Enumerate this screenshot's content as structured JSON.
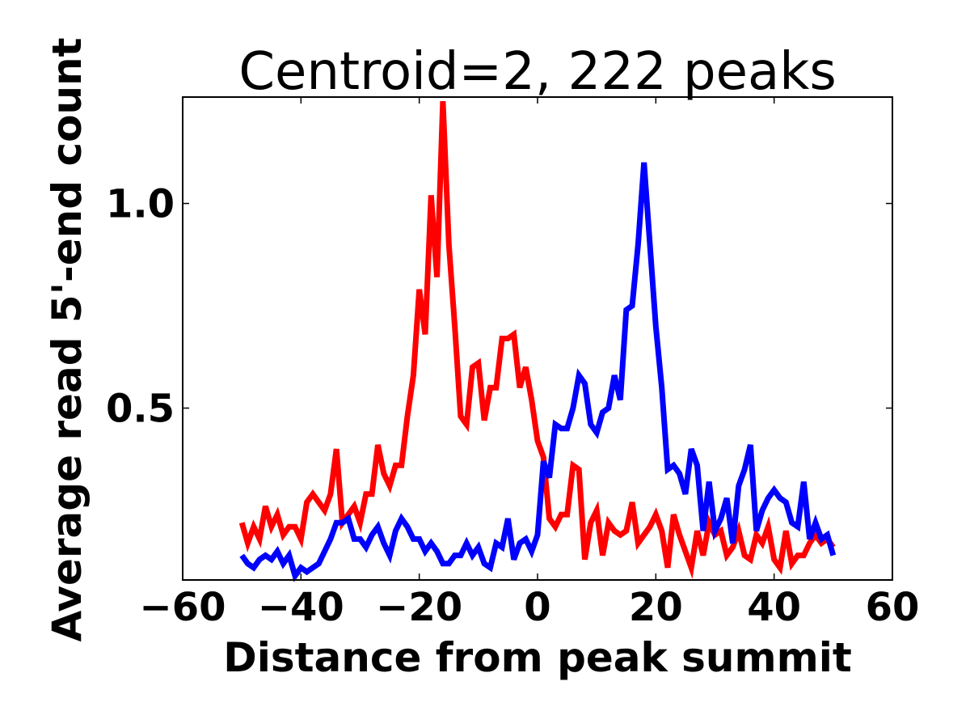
{
  "chart_data": {
    "type": "line",
    "title": "Centroid=2, 222 peaks",
    "xlabel": "Distance from peak summit",
    "ylabel": "Average read 5'-end count",
    "xlim": [
      -60,
      60
    ],
    "ylim": [
      0.08,
      1.26
    ],
    "xticks": [
      -60,
      -40,
      -20,
      0,
      20,
      40,
      60
    ],
    "xtick_labels": [
      "−60",
      "−40",
      "−20",
      "0",
      "20",
      "40",
      "60"
    ],
    "yticks": [
      0.5,
      1.0
    ],
    "ytick_labels": [
      "0.5",
      "1.0"
    ],
    "grid": false,
    "legend": "none",
    "x": [
      -50,
      -49,
      -48,
      -47,
      -46,
      -45,
      -44,
      -43,
      -42,
      -41,
      -40,
      -39,
      -38,
      -37,
      -36,
      -35,
      -34,
      -33,
      -32,
      -31,
      -30,
      -29,
      -28,
      -27,
      -26,
      -25,
      -24,
      -23,
      -22,
      -21,
      -20,
      -19,
      -18,
      -17,
      -16,
      -15,
      -14,
      -13,
      -12,
      -11,
      -10,
      -9,
      -8,
      -7,
      -6,
      -5,
      -4,
      -3,
      -2,
      -1,
      0,
      1,
      2,
      3,
      4,
      5,
      6,
      7,
      8,
      9,
      10,
      11,
      12,
      13,
      14,
      15,
      16,
      17,
      18,
      19,
      20,
      21,
      22,
      23,
      24,
      25,
      26,
      27,
      28,
      29,
      30,
      31,
      32,
      33,
      34,
      35,
      36,
      37,
      38,
      39,
      40,
      41,
      42,
      43,
      44,
      45,
      46,
      47,
      48,
      49,
      50
    ],
    "series": [
      {
        "color": "#ff0000",
        "values": [
          0.22,
          0.17,
          0.21,
          0.18,
          0.26,
          0.21,
          0.24,
          0.19,
          0.21,
          0.21,
          0.18,
          0.27,
          0.29,
          0.27,
          0.25,
          0.29,
          0.4,
          0.22,
          0.24,
          0.26,
          0.22,
          0.29,
          0.29,
          0.41,
          0.34,
          0.31,
          0.36,
          0.36,
          0.48,
          0.58,
          0.79,
          0.68,
          1.02,
          0.82,
          1.25,
          0.9,
          0.7,
          0.48,
          0.46,
          0.6,
          0.61,
          0.47,
          0.55,
          0.55,
          0.67,
          0.67,
          0.68,
          0.55,
          0.6,
          0.52,
          0.42,
          0.38,
          0.23,
          0.21,
          0.24,
          0.24,
          0.36,
          0.35,
          0.13,
          0.22,
          0.25,
          0.14,
          0.22,
          0.2,
          0.19,
          0.2,
          0.27,
          0.17,
          0.19,
          0.21,
          0.24,
          0.2,
          0.11,
          0.24,
          0.19,
          0.15,
          0.11,
          0.2,
          0.14,
          0.22,
          0.19,
          0.2,
          0.14,
          0.16,
          0.2,
          0.14,
          0.13,
          0.19,
          0.17,
          0.21,
          0.13,
          0.11,
          0.2,
          0.12,
          0.14,
          0.14,
          0.17,
          0.19,
          0.17,
          0.18,
          0.16
        ]
      },
      {
        "color": "#0000ff",
        "values": [
          0.14,
          0.12,
          0.11,
          0.13,
          0.14,
          0.13,
          0.15,
          0.12,
          0.14,
          0.09,
          0.11,
          0.1,
          0.11,
          0.12,
          0.15,
          0.18,
          0.22,
          0.22,
          0.23,
          0.18,
          0.18,
          0.16,
          0.19,
          0.21,
          0.17,
          0.14,
          0.2,
          0.23,
          0.21,
          0.18,
          0.18,
          0.15,
          0.17,
          0.15,
          0.12,
          0.12,
          0.14,
          0.14,
          0.17,
          0.14,
          0.16,
          0.12,
          0.11,
          0.17,
          0.16,
          0.23,
          0.13,
          0.17,
          0.18,
          0.15,
          0.19,
          0.37,
          0.33,
          0.46,
          0.45,
          0.45,
          0.5,
          0.58,
          0.56,
          0.46,
          0.44,
          0.49,
          0.5,
          0.58,
          0.52,
          0.74,
          0.75,
          0.9,
          1.1,
          0.9,
          0.7,
          0.55,
          0.35,
          0.36,
          0.34,
          0.29,
          0.4,
          0.36,
          0.2,
          0.32,
          0.2,
          0.23,
          0.28,
          0.17,
          0.31,
          0.35,
          0.41,
          0.2,
          0.25,
          0.28,
          0.3,
          0.28,
          0.27,
          0.22,
          0.21,
          0.32,
          0.18,
          0.22,
          0.18,
          0.19,
          0.14
        ]
      }
    ]
  }
}
